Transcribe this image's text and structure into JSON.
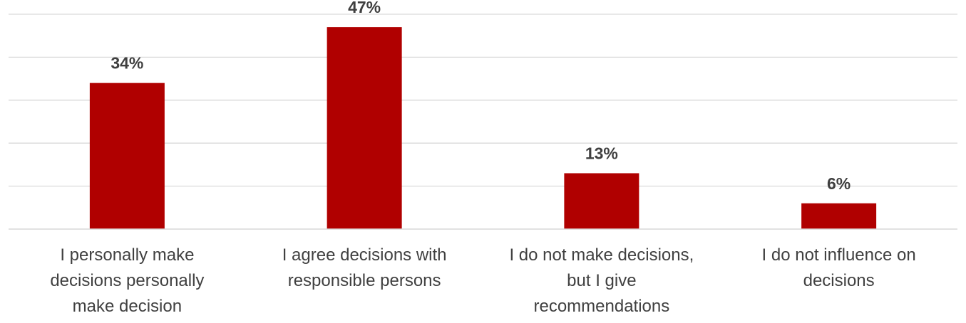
{
  "chart_data": {
    "type": "bar",
    "categories": [
      [
        "I personally make",
        "decisions personally",
        "make decision"
      ],
      [
        "I agree decisions with",
        "responsible persons"
      ],
      [
        "I do not make decisions,",
        "but I give",
        "recommendations"
      ],
      [
        "I do not influence on",
        "decisions"
      ]
    ],
    "values": [
      34,
      47,
      13,
      6
    ],
    "data_labels": [
      "34%",
      "47%",
      "13%",
      "6%"
    ],
    "ylim": [
      0,
      50
    ],
    "grid": true,
    "bar_color": "#b00000",
    "grid_color": "#d9d9d9",
    "title": "",
    "xlabel": "",
    "ylabel": ""
  }
}
